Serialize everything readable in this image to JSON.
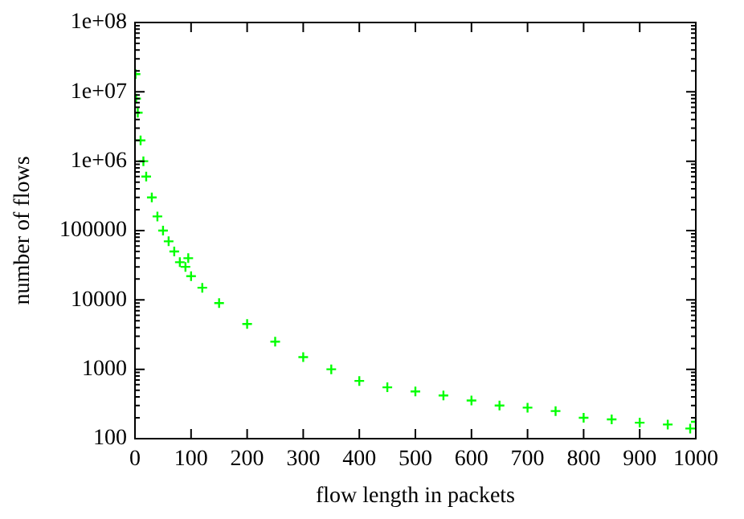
{
  "chart_data": {
    "type": "scatter",
    "xlabel": "flow length in packets",
    "ylabel": "number of flows",
    "x": [
      1,
      2,
      5,
      10,
      15,
      20,
      30,
      40,
      50,
      60,
      70,
      80,
      90,
      95,
      100,
      120,
      150,
      200,
      250,
      300,
      350,
      400,
      450,
      500,
      550,
      600,
      650,
      700,
      750,
      800,
      850,
      900,
      950,
      990,
      1000
    ],
    "series": [
      {
        "color": "#00ff00",
        "values": [
          18000000,
          8000000,
          5000000,
          2000000,
          1000000,
          600000,
          300000,
          160000,
          100000,
          70000,
          50000,
          35000,
          30000,
          40000,
          22000,
          15000,
          9000,
          4500,
          2500,
          1500,
          1000,
          680,
          550,
          480,
          420,
          355,
          300,
          280,
          250,
          200,
          190,
          170,
          160,
          140,
          175
        ]
      }
    ],
    "log": "y",
    "marker": "cross",
    "xlim": [
      0,
      1000
    ],
    "xticks": [
      0,
      100,
      200,
      300,
      400,
      500,
      600,
      700,
      800,
      900,
      1000
    ],
    "ylim": [
      100,
      100000000
    ],
    "yticks": [
      100,
      1000,
      10000,
      100000,
      {
        "value": 1000000,
        "label": "1e+06"
      },
      {
        "value": 10000000,
        "label": "1e+07"
      },
      {
        "value": 100000000,
        "label": "1e+08"
      }
    ]
  }
}
